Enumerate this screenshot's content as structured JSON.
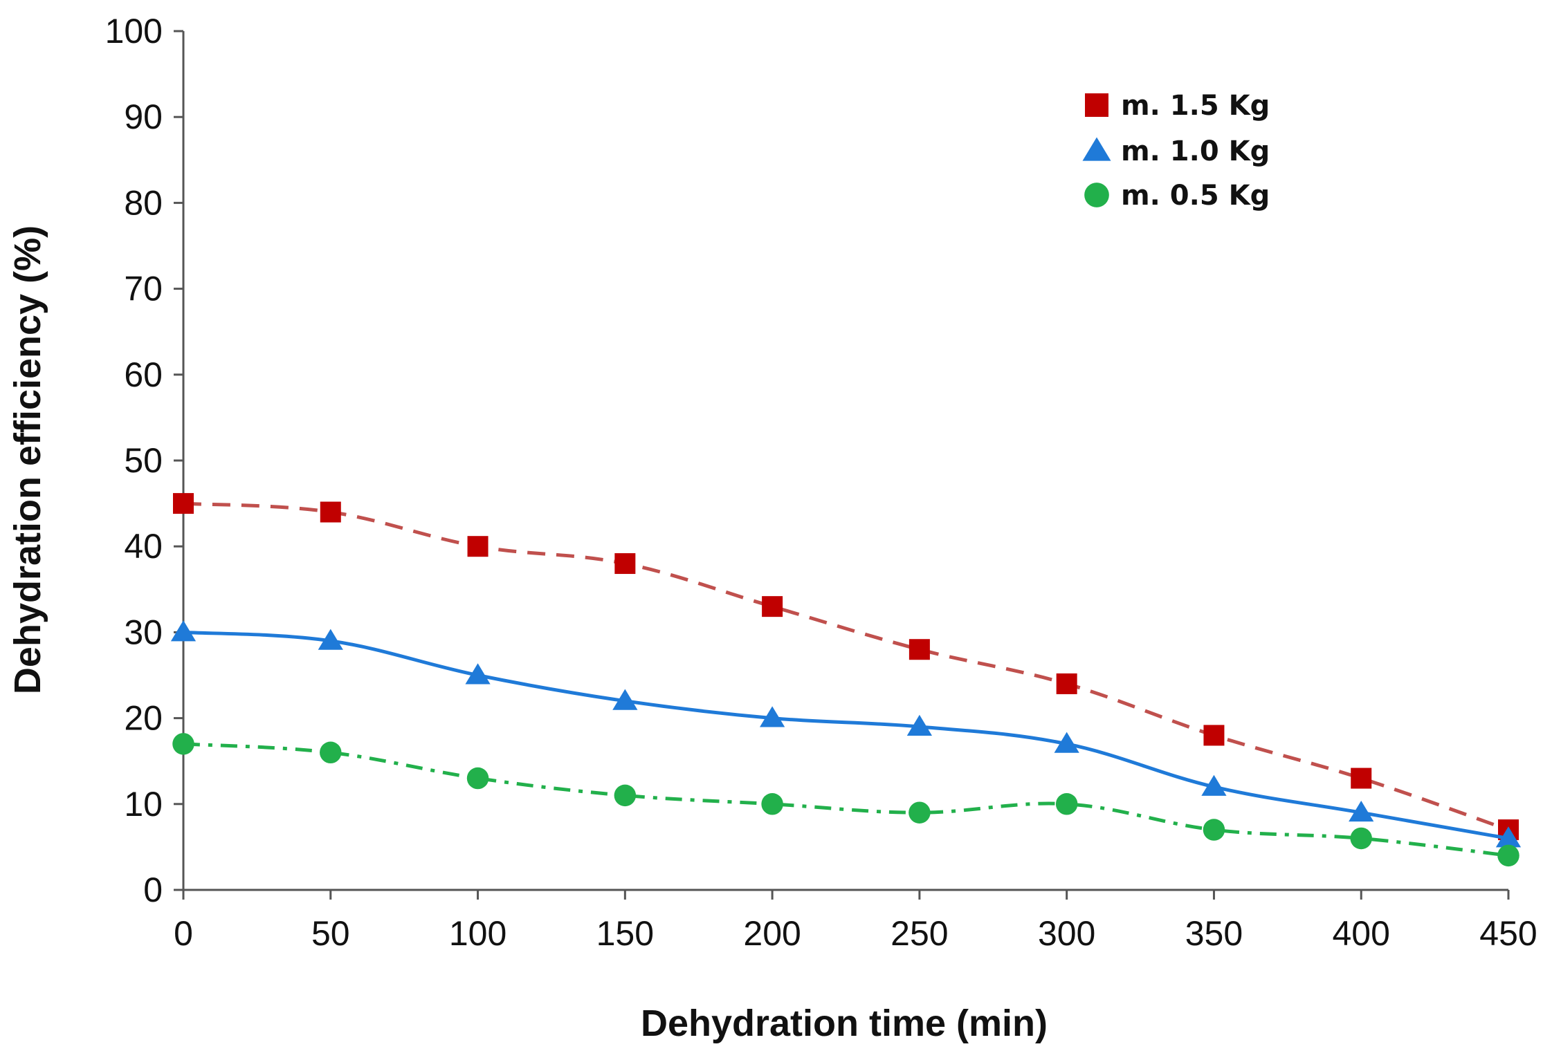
{
  "chart_data": {
    "type": "line",
    "title": "",
    "xlabel": "Dehydration time (min)",
    "ylabel": "Dehydration efficiency (%)",
    "xlim": [
      0,
      450
    ],
    "ylim": [
      0,
      100
    ],
    "xticks": [
      0,
      50,
      100,
      150,
      200,
      250,
      300,
      350,
      400,
      450
    ],
    "yticks": [
      0,
      10,
      20,
      30,
      40,
      50,
      60,
      70,
      80,
      90,
      100
    ],
    "grid": false,
    "legend_position": "top-right",
    "x": [
      0,
      50,
      100,
      150,
      200,
      250,
      300,
      350,
      400,
      450
    ],
    "series": [
      {
        "name": "m. 1.5 Kg",
        "values": [
          45,
          44,
          40,
          38,
          33,
          28,
          24,
          18,
          13,
          7
        ],
        "marker": "square",
        "marker_color": "#c00000",
        "line_color": "#c0504d",
        "line_style": "dashed"
      },
      {
        "name": "m. 1.0 Kg",
        "values": [
          30,
          29,
          25,
          22,
          20,
          19,
          17,
          12,
          9,
          6
        ],
        "marker": "triangle",
        "marker_color": "#1f7ad8",
        "line_color": "#1f7ad8",
        "line_style": "solid"
      },
      {
        "name": "m. 0.5 Kg",
        "values": [
          17,
          16,
          13,
          11,
          10,
          9,
          10,
          7,
          6,
          4
        ],
        "marker": "circle",
        "marker_color": "#22b04b",
        "line_color": "#22b04b",
        "line_style": "dashdot"
      }
    ]
  }
}
